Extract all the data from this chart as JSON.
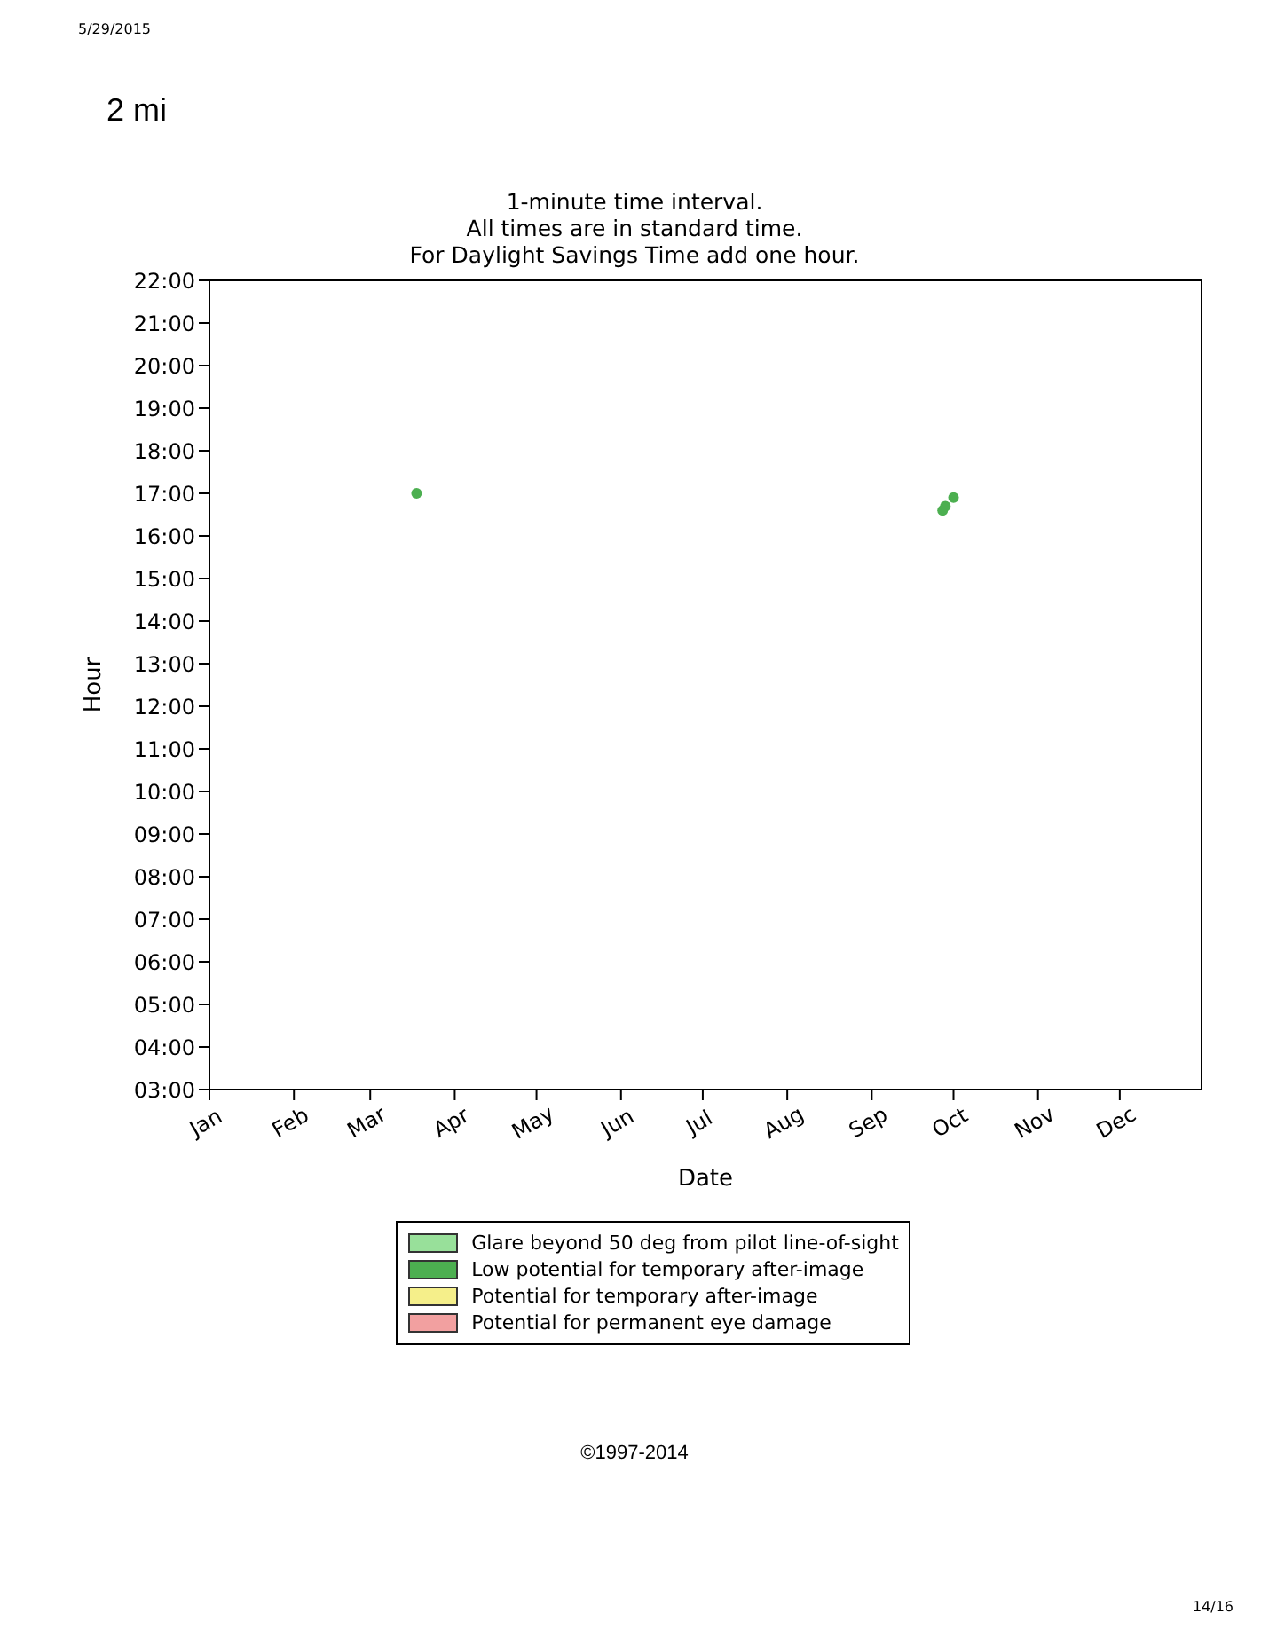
{
  "chart_data": {
    "type": "scatter",
    "title": "2 mi",
    "subtitle": "1-minute time interval.\nAll times are in standard time.\nFor Daylight Savings Time add one hour.",
    "xlabel": "Date",
    "ylabel": "Hour",
    "annotations": [
      "5/29/2015",
      "©1997-2014",
      "14/16"
    ],
    "series": [
      {
        "name": "Glare beyond 50 deg from pilot line-of-sight",
        "color": "#98e09a"
      },
      {
        "name": "Low potential for temporary after-image",
        "color": "#4caf50",
        "x": [
          "--03-18",
          "--09-27",
          "--09-28",
          "--10-01"
        ],
        "values": [
          17.0,
          16.6,
          16.7,
          16.9
        ]
      },
      {
        "name": "Potential for temporary after-image",
        "color": "#f5ef8a"
      },
      {
        "name": "Potential for permanent eye damage",
        "color": "#f2a0a0"
      }
    ],
    "xlim": [
      "--01-01",
      "--12-31"
    ],
    "xticks": [
      {
        "value": "--01-01",
        "label": "Jan"
      },
      {
        "value": "--02-01",
        "label": "Feb"
      },
      {
        "value": "--03-01",
        "label": "Mar"
      },
      {
        "value": "--04-01",
        "label": "Apr"
      },
      {
        "value": "--05-01",
        "label": "May"
      },
      {
        "value": "--06-01",
        "label": "Jun"
      },
      {
        "value": "--07-01",
        "label": "Jul"
      },
      {
        "value": "--08-01",
        "label": "Aug"
      },
      {
        "value": "--09-01",
        "label": "Sep"
      },
      {
        "value": "--10-01",
        "label": "Oct"
      },
      {
        "value": "--11-01",
        "label": "Nov"
      },
      {
        "value": "--12-01",
        "label": "Dec"
      }
    ],
    "ylim": [
      3,
      22
    ],
    "yticks": [
      {
        "value": 3,
        "label": "03:00"
      },
      {
        "value": 4,
        "label": "04:00"
      },
      {
        "value": 5,
        "label": "05:00"
      },
      {
        "value": 6,
        "label": "06:00"
      },
      {
        "value": 7,
        "label": "07:00"
      },
      {
        "value": 8,
        "label": "08:00"
      },
      {
        "value": 9,
        "label": "09:00"
      },
      {
        "value": 10,
        "label": "10:00"
      },
      {
        "value": 11,
        "label": "11:00"
      },
      {
        "value": 12,
        "label": "12:00"
      },
      {
        "value": 13,
        "label": "13:00"
      },
      {
        "value": 14,
        "label": "14:00"
      },
      {
        "value": 15,
        "label": "15:00"
      },
      {
        "value": 16,
        "label": "16:00"
      },
      {
        "value": 17,
        "label": "17:00"
      },
      {
        "value": 18,
        "label": "18:00"
      },
      {
        "value": 19,
        "label": "19:00"
      },
      {
        "value": 20,
        "label": "20:00"
      },
      {
        "value": 21,
        "label": "21:00"
      },
      {
        "value": 22,
        "label": "22:00"
      }
    ],
    "grid": false,
    "legend": "bottom",
    "marker": "circle"
  }
}
